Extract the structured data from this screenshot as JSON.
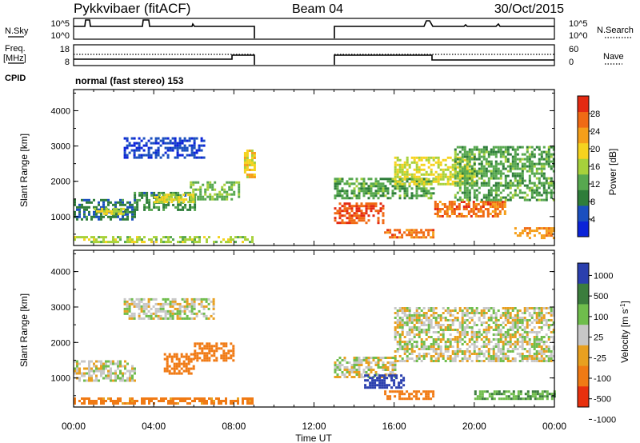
{
  "header": {
    "radar": "Pykkvibaer (fitACF)",
    "beam": "Beam 04",
    "date": "30/Oct/2015"
  },
  "nsky_panel": {
    "left_label": "N.Sky",
    "y_ticks_left": [
      "10^5",
      "10^0"
    ],
    "right_label": "N.Search",
    "y_ticks_right": [
      "10^5",
      "10^0"
    ]
  },
  "freq_panel": {
    "left_label_1": "Freq.",
    "left_label_2": "[MHz]",
    "y_ticks_left": [
      "18",
      "8"
    ],
    "right_label": "Nave",
    "y_ticks_right": [
      "60",
      "0"
    ]
  },
  "cpid_panel": {
    "label": "CPID",
    "mode_text": "normal (fast stereo) 153"
  },
  "time_axis": {
    "ticks": [
      "00:00",
      "04:00",
      "08:00",
      "12:00",
      "16:00",
      "20:00",
      "00:00"
    ],
    "title": "Time UT"
  },
  "colors": {
    "power": [
      "#0b23d8",
      "#1a4fbf",
      "#2e7d3a",
      "#57a84f",
      "#a7d13b",
      "#f5d31f",
      "#f59f1a",
      "#f06a14",
      "#e42a12"
    ],
    "velocity": [
      "#2a3fae",
      "#3b7d3d",
      "#6fbd4c",
      "#c7c7c7",
      "#e8a020",
      "#f07a14",
      "#e8300e"
    ]
  },
  "chart_data": [
    {
      "type": "heatmap",
      "ylabel": "Slant Range [km]",
      "y_ticks": [
        "4000",
        "3000",
        "2000",
        "1000"
      ],
      "ylim": [
        180,
        4600
      ],
      "xlim": [
        "00:00",
        "24:00"
      ],
      "colorbar_label": "Power [dB]",
      "colorbar_ticks": [
        "28",
        "24",
        "20",
        "16",
        "12",
        "8",
        "4"
      ],
      "colorbar_range": [
        0,
        32
      ],
      "data_gap": [
        "09:00",
        "13:00"
      ],
      "features": [
        {
          "t0": 0.0,
          "t1": 9.0,
          "r0": 250,
          "r1": 450,
          "value": 16
        },
        {
          "t0": 0.0,
          "t1": 3.0,
          "r0": 900,
          "r1": 1500,
          "value": 8
        },
        {
          "t0": 1.0,
          "t1": 2.5,
          "r0": 1050,
          "r1": 1250,
          "value": 18
        },
        {
          "t0": 3.0,
          "t1": 6.0,
          "r0": 1200,
          "r1": 1700,
          "value": 10
        },
        {
          "t0": 4.0,
          "t1": 6.0,
          "r0": 1400,
          "r1": 1650,
          "value": 18
        },
        {
          "t0": 5.8,
          "t1": 8.3,
          "r0": 1500,
          "r1": 2000,
          "value": 14
        },
        {
          "t0": 2.5,
          "t1": 6.5,
          "r0": 2700,
          "r1": 3250,
          "value": 4
        },
        {
          "t0": 8.5,
          "t1": 9.0,
          "r0": 2100,
          "r1": 2900,
          "value": 20
        },
        {
          "t0": 13.0,
          "t1": 15.5,
          "r0": 800,
          "r1": 1400,
          "value": 28
        },
        {
          "t0": 15.5,
          "t1": 18.0,
          "r0": 400,
          "r1": 650,
          "value": 26
        },
        {
          "t0": 13.0,
          "t1": 18.0,
          "r0": 1500,
          "r1": 2100,
          "value": 12
        },
        {
          "t0": 16.0,
          "t1": 20.0,
          "r0": 1900,
          "r1": 2700,
          "value": 18
        },
        {
          "t0": 18.0,
          "t1": 21.5,
          "r0": 1000,
          "r1": 1450,
          "value": 26
        },
        {
          "t0": 19.0,
          "t1": 24.0,
          "r0": 1500,
          "r1": 3000,
          "value": 12
        },
        {
          "t0": 22.0,
          "t1": 24.0,
          "r0": 400,
          "r1": 700,
          "value": 24
        }
      ]
    },
    {
      "type": "heatmap",
      "ylabel": "Slant Range [km]",
      "y_ticks": [
        "4000",
        "3000",
        "2000",
        "1000"
      ],
      "ylim": [
        180,
        4600
      ],
      "xlim": [
        "00:00",
        "24:00"
      ],
      "colorbar_label": "Velocity [m s-1]",
      "colorbar_ticks": [
        "1000",
        "500",
        "100",
        "25",
        "-25",
        "-100",
        "-500",
        "-1000"
      ],
      "colorbar_range": [
        -1000,
        1000
      ],
      "data_gap": [
        "09:00",
        "13:00"
      ],
      "features": [
        {
          "t0": 0.0,
          "t1": 9.0,
          "r0": 250,
          "r1": 450,
          "value": -150
        },
        {
          "t0": 0.0,
          "t1": 3.0,
          "r0": 900,
          "r1": 1500,
          "value": 0
        },
        {
          "t0": 4.5,
          "t1": 6.0,
          "r0": 1100,
          "r1": 1700,
          "value": -400
        },
        {
          "t0": 6.0,
          "t1": 8.0,
          "r0": 1500,
          "r1": 2000,
          "value": -200
        },
        {
          "t0": 2.5,
          "t1": 7.0,
          "r0": 2700,
          "r1": 3250,
          "value": 0
        },
        {
          "t0": 13.0,
          "t1": 16.0,
          "r0": 1000,
          "r1": 1600,
          "value": 0
        },
        {
          "t0": 14.5,
          "t1": 16.5,
          "r0": 700,
          "r1": 1100,
          "value": 600
        },
        {
          "t0": 15.5,
          "t1": 18.0,
          "r0": 400,
          "r1": 650,
          "value": -200
        },
        {
          "t0": 16.0,
          "t1": 24.0,
          "r0": 1500,
          "r1": 3000,
          "value": 0
        },
        {
          "t0": 20.0,
          "t1": 24.0,
          "r0": 400,
          "r1": 650,
          "value": 100
        }
      ]
    }
  ]
}
